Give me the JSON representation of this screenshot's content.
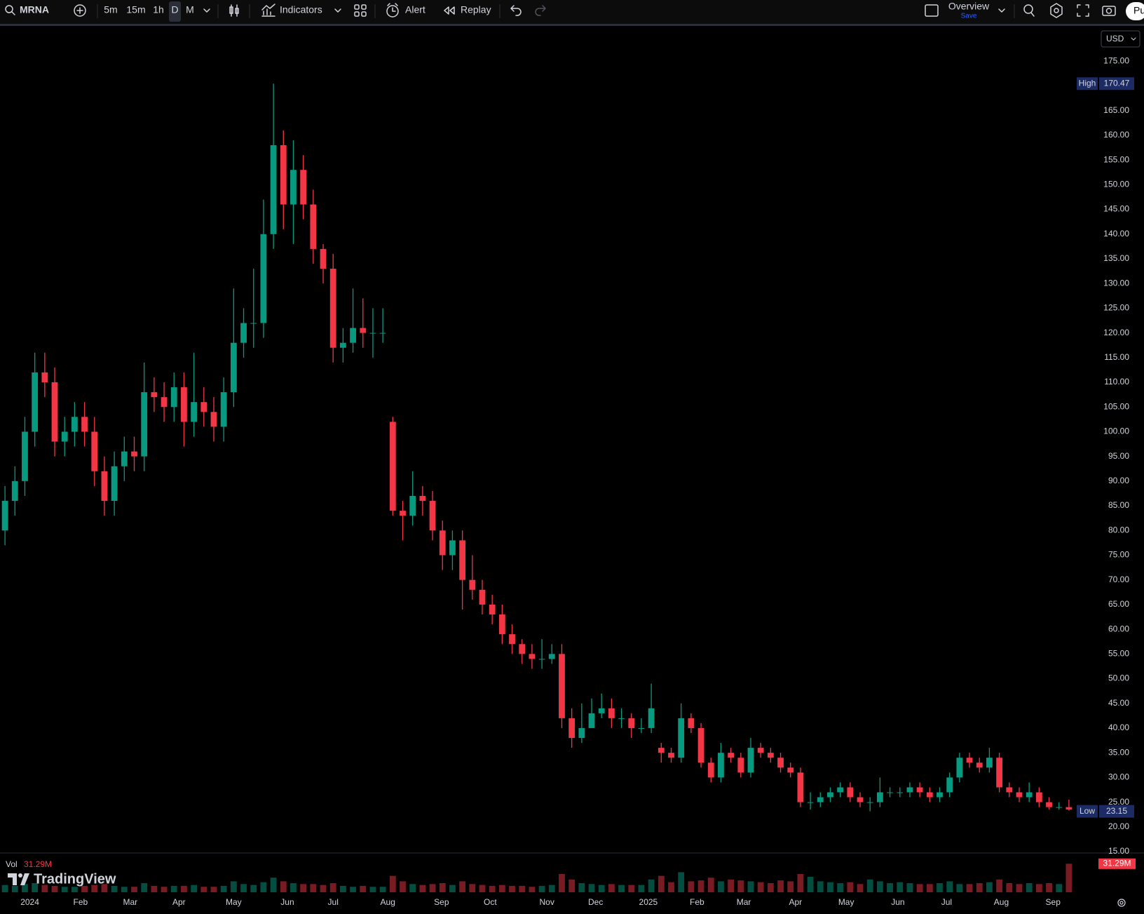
{
  "toolbar": {
    "symbol": "MRNA",
    "intervals": [
      "5m",
      "15m",
      "1h",
      "D",
      "M"
    ],
    "indicators": "Indicators",
    "alert": "Alert",
    "replay": "Replay",
    "layout": "Overview",
    "layout_status": "Save",
    "publish": "Pu"
  },
  "chart_data": {
    "type": "candlestick",
    "currency": "USD",
    "open": [
      80,
      86,
      90,
      100,
      112,
      110,
      98,
      100,
      103,
      100,
      92,
      86,
      93,
      96,
      95,
      108,
      107,
      105,
      109,
      102,
      106,
      104,
      101,
      108,
      118,
      122,
      122,
      140,
      158,
      146,
      153,
      146,
      137,
      133,
      117,
      118,
      121,
      120,
      120,
      102,
      84,
      83,
      87,
      86,
      80,
      75,
      78,
      70,
      68,
      65,
      63,
      59,
      57,
      55,
      54,
      54,
      55,
      42,
      38,
      40,
      43,
      44,
      42,
      42,
      40,
      40,
      36,
      35,
      34,
      42,
      40,
      33,
      30,
      35,
      34,
      31,
      36,
      35,
      34,
      32,
      31,
      25,
      25,
      26,
      27,
      28,
      26,
      25,
      25,
      27,
      27,
      27,
      28,
      27,
      26,
      27,
      30,
      34,
      33,
      32,
      34,
      28,
      27,
      26,
      27,
      25,
      24,
      24
    ],
    "high": [
      89,
      93,
      103,
      116,
      116,
      113,
      103,
      106,
      106,
      103,
      95,
      96,
      99,
      99,
      114,
      111,
      110,
      112,
      112,
      116,
      109,
      107,
      111,
      129,
      125,
      133,
      147,
      170.47,
      161,
      159,
      156,
      149,
      138,
      136,
      121,
      129,
      127,
      125,
      125,
      103,
      86,
      92,
      89,
      88,
      82,
      80,
      80,
      75,
      70,
      67,
      65,
      61,
      58,
      57,
      58,
      57,
      57,
      44,
      45,
      46,
      47,
      46,
      44,
      43,
      42,
      49,
      37,
      36,
      45,
      43,
      41,
      34,
      37,
      36,
      35,
      38,
      37,
      36,
      35,
      33,
      32,
      27,
      27,
      28,
      29,
      29,
      27,
      26,
      30,
      28,
      28,
      29,
      29,
      28,
      28,
      31,
      35,
      35,
      34,
      36,
      35,
      29,
      28,
      29,
      28,
      26,
      25,
      25.5
    ],
    "low": [
      77,
      83,
      87,
      97,
      107,
      95,
      95,
      97,
      97,
      89,
      83,
      83,
      90,
      92,
      92,
      104,
      102,
      102,
      97,
      99,
      101,
      98,
      98,
      105,
      115,
      117,
      119,
      137,
      141,
      138,
      143,
      134,
      130,
      114,
      114,
      116,
      117,
      115,
      118,
      83,
      78,
      81,
      83,
      78,
      72,
      72,
      64,
      66,
      63,
      61,
      57,
      55,
      53,
      52,
      52,
      53,
      40,
      36,
      37,
      41,
      42,
      40,
      40,
      38,
      39,
      39,
      33,
      33,
      33,
      39,
      32,
      29,
      29,
      33,
      30,
      30,
      34,
      33,
      31,
      30,
      24,
      23.5,
      24,
      25,
      26,
      25,
      24,
      23.15,
      24,
      26,
      26,
      26,
      26,
      25,
      25,
      26,
      29,
      32,
      31,
      31,
      27,
      26,
      25,
      25,
      24,
      23.5,
      23.5,
      23.3
    ],
    "close": [
      86,
      90,
      100,
      112,
      110,
      98,
      100,
      103,
      100,
      92,
      86,
      93,
      96,
      95,
      108,
      107,
      105,
      109,
      102,
      106,
      104,
      101,
      108,
      118,
      122,
      122,
      140,
      158,
      146,
      153,
      146,
      137,
      133,
      117,
      118,
      121,
      120,
      120,
      120,
      84,
      83,
      87,
      86,
      80,
      75,
      78,
      70,
      68,
      65,
      63,
      59,
      57,
      55,
      54,
      54,
      55,
      42,
      38,
      40,
      43,
      44,
      42,
      42,
      40,
      40,
      44,
      35,
      34,
      42,
      40,
      33,
      30,
      35,
      34,
      31,
      36,
      35,
      34,
      32,
      31,
      25,
      25,
      26,
      27,
      28,
      26,
      25,
      25,
      27,
      27,
      27,
      28,
      27,
      26,
      27,
      30,
      34,
      33,
      32,
      34,
      28,
      27,
      26,
      27,
      25,
      24,
      24,
      23.5
    ],
    "colors": {
      "up": "#089981",
      "down": "#f23645"
    },
    "grid": false,
    "ylim": [
      15,
      182
    ],
    "yticks": [
      {
        "value": 15,
        "label": "15.00"
      },
      {
        "value": 20,
        "label": "20.00"
      },
      {
        "value": 25,
        "label": "25.00"
      },
      {
        "value": 30,
        "label": "30.00"
      },
      {
        "value": 35,
        "label": "35.00"
      },
      {
        "value": 40,
        "label": "40.00"
      },
      {
        "value": 45,
        "label": "45.00"
      },
      {
        "value": 50,
        "label": "50.00"
      },
      {
        "value": 55,
        "label": "55.00"
      },
      {
        "value": 60,
        "label": "60.00"
      },
      {
        "value": 65,
        "label": "65.00"
      },
      {
        "value": 70,
        "label": "70.00"
      },
      {
        "value": 75,
        "label": "75.00"
      },
      {
        "value": 80,
        "label": "80.00"
      },
      {
        "value": 85,
        "label": "85.00"
      },
      {
        "value": 90,
        "label": "90.00"
      },
      {
        "value": 95,
        "label": "95.00"
      },
      {
        "value": 100,
        "label": "100.00"
      },
      {
        "value": 105,
        "label": "105.00"
      },
      {
        "value": 110,
        "label": "110.00"
      },
      {
        "value": 115,
        "label": "115.00"
      },
      {
        "value": 120,
        "label": "120.00"
      },
      {
        "value": 125,
        "label": "125.00"
      },
      {
        "value": 130,
        "label": "130.00"
      },
      {
        "value": 135,
        "label": "135.00"
      },
      {
        "value": 140,
        "label": "140.00"
      },
      {
        "value": 145,
        "label": "145.00"
      },
      {
        "value": 150,
        "label": "150.00"
      },
      {
        "value": 155,
        "label": "155.00"
      },
      {
        "value": 160,
        "label": "160.00"
      },
      {
        "value": 165,
        "label": "165.00"
      },
      {
        "value": 175,
        "label": "175.00"
      }
    ],
    "xticks": [
      {
        "value": 3.0,
        "label": "2024"
      },
      {
        "value": 8.1,
        "label": "Feb"
      },
      {
        "value": 13.1,
        "label": "Mar"
      },
      {
        "value": 18.0,
        "label": "Apr"
      },
      {
        "value": 23.5,
        "label": "May"
      },
      {
        "value": 28.9,
        "label": "Jun"
      },
      {
        "value": 33.5,
        "label": "Jul"
      },
      {
        "value": 39.0,
        "label": "Aug"
      },
      {
        "value": 44.4,
        "label": "Sep"
      },
      {
        "value": 49.3,
        "label": "Oct"
      },
      {
        "value": 55.0,
        "label": "Nov"
      },
      {
        "value": 59.9,
        "label": "Dec"
      },
      {
        "value": 65.2,
        "label": "2025"
      },
      {
        "value": 70.1,
        "label": "Feb"
      },
      {
        "value": 74.8,
        "label": "Mar"
      },
      {
        "value": 80.0,
        "label": "Apr"
      },
      {
        "value": 85.1,
        "label": "May"
      },
      {
        "value": 90.3,
        "label": "Jun"
      },
      {
        "value": 95.2,
        "label": "Jul"
      },
      {
        "value": 100.7,
        "label": "Aug"
      },
      {
        "value": 105.9,
        "label": "Sep"
      }
    ],
    "high_marker": {
      "label": "High",
      "value": 170.47
    },
    "low_marker": {
      "label": "Low",
      "value": 23.15
    },
    "volume": {
      "name": "Vol",
      "last_label": "31.29M",
      "ylim": [
        0,
        40
      ],
      "values": [
        8,
        7,
        9,
        10,
        8,
        7,
        6,
        6,
        7,
        8,
        9,
        7,
        6,
        6,
        10,
        7,
        6,
        7,
        7,
        8,
        6,
        6,
        7,
        12,
        9,
        8,
        11,
        16,
        12,
        10,
        9,
        9,
        8,
        10,
        7,
        6,
        7,
        6,
        6,
        18,
        12,
        9,
        8,
        9,
        10,
        8,
        12,
        9,
        8,
        7,
        8,
        7,
        7,
        6,
        7,
        8,
        20,
        14,
        10,
        9,
        8,
        9,
        8,
        8,
        8,
        14,
        18,
        11,
        22,
        12,
        13,
        16,
        12,
        14,
        13,
        12,
        11,
        10,
        13,
        12,
        20,
        17,
        12,
        11,
        10,
        11,
        9,
        14,
        12,
        10,
        11,
        10,
        9,
        9,
        10,
        12,
        9,
        9,
        10,
        11,
        14,
        10,
        9,
        10,
        9,
        10,
        9,
        31.29
      ]
    }
  },
  "watermark": "TradingView"
}
